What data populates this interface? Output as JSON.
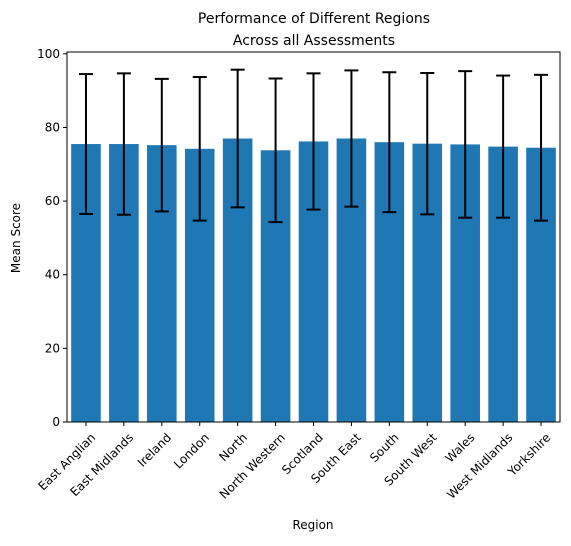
{
  "chart_data": {
    "type": "bar",
    "title": [
      "Performance of Different Regions",
      "Across all Assessments"
    ],
    "xlabel": "Region",
    "ylabel": "Mean Score",
    "categories": [
      "East Anglian",
      "East Midlands",
      "Ireland",
      "London",
      "North",
      "North Western",
      "Scotland",
      "South East",
      "South",
      "South West",
      "Wales",
      "West Midlands",
      "Yorkshire"
    ],
    "values": [
      75.5,
      75.5,
      75.2,
      74.2,
      77.0,
      73.8,
      76.2,
      77.0,
      76.0,
      75.6,
      75.4,
      74.8,
      74.5
    ],
    "error": [
      19.0,
      19.2,
      18.0,
      19.5,
      18.7,
      19.5,
      18.5,
      18.5,
      19.0,
      19.2,
      19.9,
      19.3,
      19.8
    ],
    "ylim": [
      0,
      100.5
    ],
    "yticks": [
      0,
      20,
      40,
      60,
      80,
      100
    ],
    "grid": false,
    "bar_color": "#1f77b4",
    "error_color": "#000000"
  }
}
